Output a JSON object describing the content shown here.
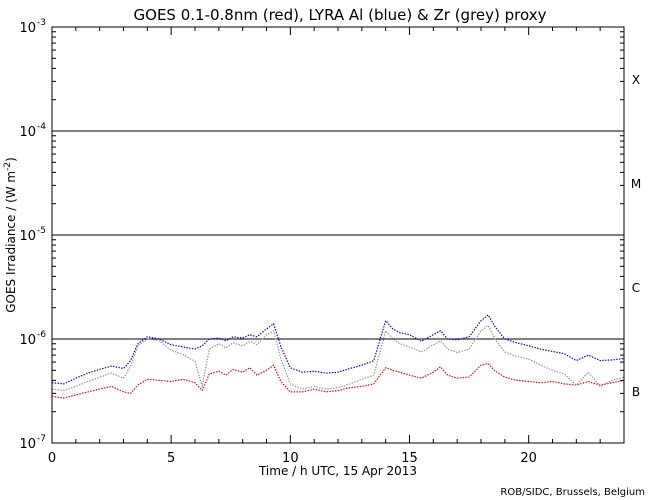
{
  "chart_data": {
    "type": "line",
    "title": "GOES 0.1-0.8nm (red), LYRA Al (blue) & Zr (grey) proxy",
    "xlabel": "Time / h UTC, 15 Apr 2013",
    "ylabel_parts": [
      "GOES Irradiance / (W m",
      "-2",
      ")"
    ],
    "x_range": [
      0,
      24
    ],
    "y_range": [
      1e-07,
      0.001
    ],
    "y_scale": "log",
    "x_ticks": [
      {
        "value": 0,
        "label": "0"
      },
      {
        "value": 5,
        "label": "5"
      },
      {
        "value": 10,
        "label": "10"
      },
      {
        "value": 15,
        "label": "15"
      },
      {
        "value": 20,
        "label": "20"
      }
    ],
    "y_ticks": [
      {
        "value": 1e-07,
        "base": "10",
        "exp": "-7"
      },
      {
        "value": 1e-06,
        "base": "10",
        "exp": "-6"
      },
      {
        "value": 1e-05,
        "base": "10",
        "exp": "-5"
      },
      {
        "value": 0.0001,
        "base": "10",
        "exp": "-4"
      },
      {
        "value": 0.001,
        "base": "10",
        "exp": "-3"
      }
    ],
    "flare_class_lines": [
      1e-06,
      1e-05,
      0.0001
    ],
    "flare_classes": [
      {
        "label": "X",
        "value": 0.000316
      },
      {
        "label": "M",
        "value": 3.16e-05
      },
      {
        "label": "C",
        "value": 3.16e-06
      },
      {
        "label": "B",
        "value": 3.16e-07
      }
    ],
    "credit": "ROB/SIDC, Brussels, Belgium",
    "series": [
      {
        "color": "#dd0000",
        "x": [
          0,
          0.5,
          1,
          1.5,
          2,
          2.5,
          3,
          3.3,
          3.6,
          4,
          4.5,
          5,
          5.5,
          6,
          6.3,
          6.6,
          7,
          7.3,
          7.6,
          8,
          8.3,
          8.6,
          9,
          9.3,
          9.6,
          10,
          10.5,
          11,
          11.5,
          12,
          12.5,
          13,
          13.5,
          14,
          14.3,
          14.6,
          15,
          15.5,
          16,
          16.3,
          16.6,
          17,
          17.5,
          18,
          18.3,
          18.6,
          19,
          19.5,
          20,
          20.5,
          21,
          21.5,
          22,
          22.5,
          23,
          23.5,
          24
        ],
        "y": [
          2.8e-07,
          2.7e-07,
          2.9e-07,
          3.1e-07,
          3.3e-07,
          3.5e-07,
          3.1e-07,
          3e-07,
          3.6e-07,
          4.1e-07,
          4e-07,
          3.9e-07,
          4.1e-07,
          3.8e-07,
          3.2e-07,
          4.6e-07,
          4.9e-07,
          4.5e-07,
          5.1e-07,
          4.8e-07,
          5.3e-07,
          4.5e-07,
          5e-07,
          5.6e-07,
          3.9e-07,
          3.1e-07,
          3.1e-07,
          3.3e-07,
          3.1e-07,
          3.2e-07,
          3.4e-07,
          3.5e-07,
          3.7e-07,
          5.3e-07,
          5e-07,
          4.8e-07,
          4.5e-07,
          4.2e-07,
          4.8e-07,
          5.4e-07,
          4.5e-07,
          4.2e-07,
          4.3e-07,
          5.6e-07,
          5.8e-07,
          4.9e-07,
          4.3e-07,
          4e-07,
          3.9e-07,
          3.8e-07,
          3.9e-07,
          3.7e-07,
          3.6e-07,
          3.9e-07,
          3.6e-07,
          3.8e-07,
          4e-07
        ]
      },
      {
        "color": "#0000cc",
        "x": [
          0,
          0.5,
          1,
          1.5,
          2,
          2.5,
          3,
          3.3,
          3.6,
          4,
          4.5,
          5,
          5.5,
          6,
          6.3,
          6.6,
          7,
          7.3,
          7.6,
          8,
          8.3,
          8.6,
          9,
          9.3,
          9.6,
          10,
          10.5,
          11,
          11.5,
          12,
          12.5,
          13,
          13.5,
          14,
          14.3,
          14.6,
          15,
          15.5,
          16,
          16.3,
          16.6,
          17,
          17.5,
          18,
          18.3,
          18.6,
          19,
          19.5,
          20,
          20.5,
          21,
          21.5,
          22,
          22.5,
          23,
          23.5,
          24
        ],
        "y": [
          3.8e-07,
          3.7e-07,
          4.2e-07,
          4.7e-07,
          5.1e-07,
          5.5e-07,
          5.2e-07,
          6.2e-07,
          9e-07,
          1.05e-06,
          1e-06,
          8.8e-07,
          8.4e-07,
          8e-07,
          8.6e-07,
          1e-06,
          1.02e-06,
          9.6e-07,
          1.05e-06,
          1.02e-06,
          1.1e-06,
          1.05e-06,
          1.25e-06,
          1.4e-06,
          8.5e-07,
          5.3e-07,
          4.8e-07,
          4.9e-07,
          4.7e-07,
          4.8e-07,
          5.2e-07,
          5.6e-07,
          6.2e-07,
          1.5e-06,
          1.25e-06,
          1.15e-06,
          1.1e-06,
          9.5e-07,
          1.1e-06,
          1.2e-06,
          1e-06,
          9.8e-07,
          1.05e-06,
          1.5e-06,
          1.7e-06,
          1.3e-06,
          1e-06,
          9.2e-07,
          8.6e-07,
          8e-07,
          7.6e-07,
          7.2e-07,
          6.2e-07,
          7e-07,
          6.2e-07,
          6.3e-07,
          6.5e-07
        ]
      },
      {
        "color": "#909090",
        "x": [
          0,
          0.5,
          1,
          1.5,
          2,
          2.5,
          3,
          3.3,
          3.6,
          4,
          4.5,
          5,
          5.5,
          6,
          6.3,
          6.6,
          7,
          7.3,
          7.6,
          8,
          8.3,
          8.6,
          9,
          9.3,
          9.6,
          10,
          10.5,
          11,
          11.5,
          12,
          12.5,
          13,
          13.5,
          14,
          14.3,
          14.6,
          15,
          15.5,
          16,
          16.3,
          16.6,
          17,
          17.5,
          18,
          18.3,
          18.6,
          19,
          19.5,
          20,
          20.5,
          21,
          21.5,
          22,
          22.5,
          23,
          23.5,
          24
        ],
        "y": [
          3.3e-07,
          3.2e-07,
          3.5e-07,
          3.9e-07,
          4.3e-07,
          4.7e-07,
          4.2e-07,
          5.5e-07,
          8.6e-07,
          1e-06,
          9.6e-07,
          7.8e-07,
          7.1e-07,
          6.1e-07,
          3.5e-07,
          8e-07,
          9e-07,
          8.2e-07,
          9.2e-07,
          8.6e-07,
          9.5e-07,
          8.8e-07,
          1.1e-06,
          1.2e-06,
          6.5e-07,
          3.7e-07,
          3.3e-07,
          3.5e-07,
          3.3e-07,
          3.4e-07,
          3.7e-07,
          4.1e-07,
          4.5e-07,
          1.2e-06,
          1e-06,
          9e-07,
          8.4e-07,
          7.5e-07,
          8.8e-07,
          9.6e-07,
          8e-07,
          7.4e-07,
          8e-07,
          1.2e-06,
          1.35e-06,
          9.8e-07,
          7.5e-07,
          6.8e-07,
          6.4e-07,
          5.6e-07,
          5e-07,
          4.6e-07,
          3.6e-07,
          4.8e-07,
          3.5e-07,
          4e-07,
          4.3e-07
        ]
      }
    ]
  }
}
